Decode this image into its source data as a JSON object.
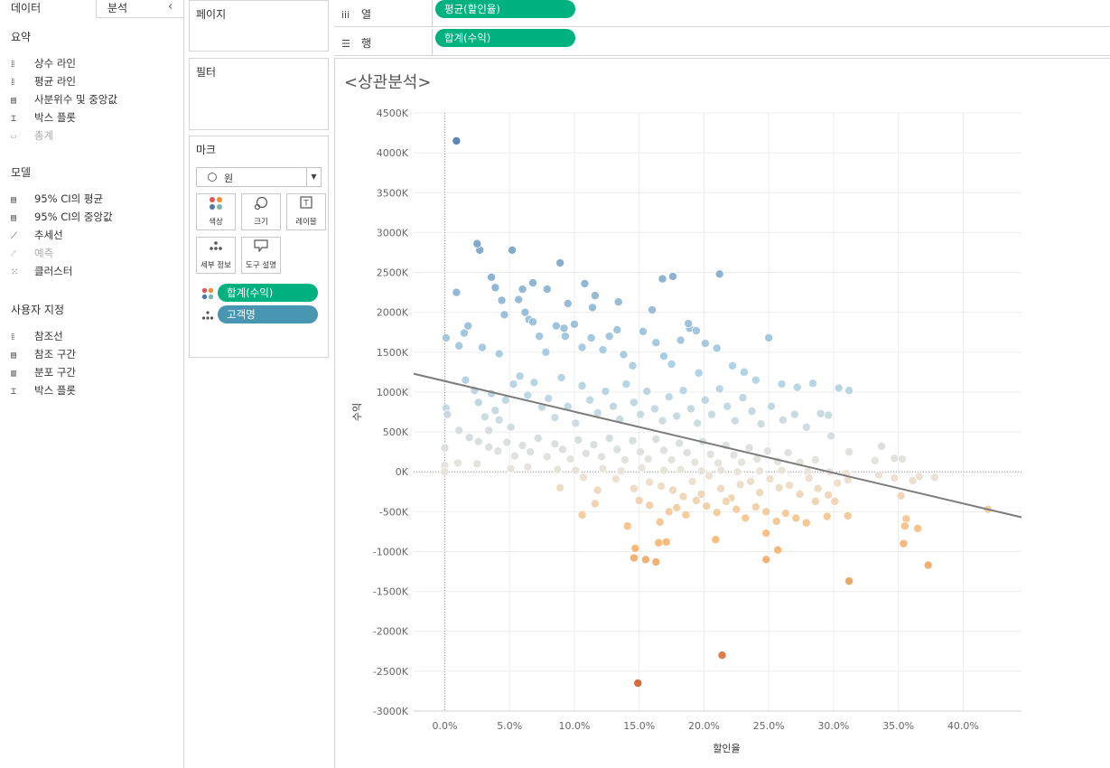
{
  "left_pane": {
    "tabs": [
      "데이터",
      "분석"
    ],
    "collapse_glyph": "‹",
    "sections": [
      {
        "title": "요약",
        "items": [
          {
            "label": "상수 라인",
            "icon": "ref-line-icon",
            "glyph": "⁞⁞",
            "disabled": false
          },
          {
            "label": "평균 라인",
            "icon": "ref-line-icon",
            "glyph": "⁞⁞",
            "disabled": false
          },
          {
            "label": "사분위수 및 중앙값",
            "icon": "band-icon",
            "glyph": "▤",
            "disabled": false
          },
          {
            "label": "박스 플롯",
            "icon": "box-plot-icon",
            "glyph": "⌶",
            "disabled": false
          },
          {
            "label": "총계",
            "icon": "totals-icon",
            "glyph": "▭",
            "disabled": true
          }
        ]
      },
      {
        "title": "모델",
        "items": [
          {
            "label": "95% CI의 평균",
            "icon": "band-icon",
            "glyph": "▤",
            "disabled": false
          },
          {
            "label": "95% CI의 중앙값",
            "icon": "band-icon",
            "glyph": "▤",
            "disabled": false
          },
          {
            "label": "추세선",
            "icon": "trend-line-icon",
            "glyph": "⟋",
            "disabled": false
          },
          {
            "label": "예측",
            "icon": "forecast-icon",
            "glyph": "⤤",
            "disabled": true
          },
          {
            "label": "클러스터",
            "icon": "cluster-icon",
            "glyph": "⁙",
            "disabled": false
          }
        ]
      },
      {
        "title": "사용자 지정",
        "items": [
          {
            "label": "참조선",
            "icon": "ref-line-icon",
            "glyph": "⁞⁞",
            "disabled": false
          },
          {
            "label": "참조 구간",
            "icon": "band-icon",
            "glyph": "▤",
            "disabled": false
          },
          {
            "label": "분포 구간",
            "icon": "band-icon",
            "glyph": "▥",
            "disabled": false
          },
          {
            "label": "박스 플롯",
            "icon": "box-plot-icon",
            "glyph": "⌶",
            "disabled": false
          }
        ]
      }
    ]
  },
  "cards": {
    "pages": {
      "title": "페이지"
    },
    "filters": {
      "title": "필터"
    },
    "marks": {
      "title": "마크",
      "mark_type": "원",
      "buttons": [
        {
          "label": "색상",
          "icon": "color-icon"
        },
        {
          "label": "크기",
          "icon": "size-icon"
        },
        {
          "label": "레이블",
          "icon": "label-icon"
        },
        {
          "label": "세부 정보",
          "icon": "detail-icon"
        },
        {
          "label": "도구 설명",
          "icon": "tooltip-icon"
        }
      ],
      "pills": [
        {
          "label": "합계(수익)",
          "color": "#00b180",
          "icon": "color-icon"
        },
        {
          "label": "고객명",
          "color": "#4996b2",
          "icon": "detail-icon"
        }
      ]
    }
  },
  "shelves": {
    "columns": {
      "label": "열",
      "pill": "평균(할인율)",
      "pill_color": "#00b180"
    },
    "rows": {
      "label": "행",
      "pill": "합계(수익)",
      "pill_color": "#00b180"
    }
  },
  "sheet": {
    "title": "<상관분석>"
  },
  "chart_data": {
    "type": "scatter",
    "xlabel": "할인율",
    "ylabel": "수익",
    "x_unit": "%",
    "x_ticks": [
      "0.0%",
      "5.0%",
      "10.0%",
      "15.0%",
      "20.0%",
      "25.0%",
      "30.0%",
      "35.0%",
      "40.0%"
    ],
    "y_ticks": [
      "4500K",
      "4000K",
      "3500K",
      "3000K",
      "2500K",
      "2000K",
      "1500K",
      "1000K",
      "500K",
      "0K",
      "-500K",
      "-1000K",
      "-1500K",
      "-2000K",
      "-2500K",
      "-3000K"
    ],
    "xlim": [
      -2.4,
      44.5
    ],
    "ylim": [
      -3000,
      4500
    ],
    "y_unit": "K",
    "grid": true,
    "zero_reference_lines": true,
    "trend_line": {
      "x": [
        -2.4,
        44.5
      ],
      "y": [
        1230,
        -570
      ]
    },
    "color_scale": {
      "type": "diverging",
      "low_color": "#d2582a",
      "mid_color": "#e8e2d8",
      "high_color": "#4a78ad",
      "low_value": -2700,
      "high_value": 4200
    },
    "points": [
      [
        0.9,
        4150
      ],
      [
        2.7,
        2780
      ],
      [
        2.5,
        2860
      ],
      [
        3.6,
        2440
      ],
      [
        5.2,
        2780
      ],
      [
        6.0,
        2290
      ],
      [
        6.8,
        2370
      ],
      [
        7.9,
        2290
      ],
      [
        9.2,
        1800
      ],
      [
        9.5,
        2110
      ],
      [
        8.9,
        2620
      ],
      [
        3.9,
        2310
      ],
      [
        10.8,
        2360
      ],
      [
        11.6,
        2210
      ],
      [
        11.4,
        2060
      ],
      [
        13.4,
        2130
      ],
      [
        16.0,
        2030
      ],
      [
        16.8,
        2420
      ],
      [
        17.6,
        2450
      ],
      [
        18.9,
        1800
      ],
      [
        19.4,
        1770
      ],
      [
        21.2,
        2480
      ],
      [
        0.1,
        1680
      ],
      [
        0.9,
        2250
      ],
      [
        1.1,
        1580
      ],
      [
        1.5,
        1740
      ],
      [
        1.8,
        1830
      ],
      [
        2.9,
        1560
      ],
      [
        4.2,
        1480
      ],
      [
        4.4,
        2150
      ],
      [
        4.6,
        1970
      ],
      [
        5.7,
        2160
      ],
      [
        6.2,
        2000
      ],
      [
        6.5,
        1910
      ],
      [
        6.8,
        1880
      ],
      [
        7.3,
        1700
      ],
      [
        7.8,
        1500
      ],
      [
        8.6,
        1830
      ],
      [
        9.3,
        1700
      ],
      [
        10.0,
        1850
      ],
      [
        10.6,
        1560
      ],
      [
        11.3,
        1680
      ],
      [
        12.2,
        1530
      ],
      [
        12.7,
        1700
      ],
      [
        13.3,
        1780
      ],
      [
        13.8,
        1470
      ],
      [
        14.5,
        1330
      ],
      [
        15.3,
        1760
      ],
      [
        16.3,
        1620
      ],
      [
        16.9,
        1450
      ],
      [
        17.5,
        1350
      ],
      [
        18.2,
        1650
      ],
      [
        18.8,
        1860
      ],
      [
        19.6,
        1240
      ],
      [
        20.1,
        1610
      ],
      [
        21.0,
        1550
      ],
      [
        22.2,
        1330
      ],
      [
        23.1,
        1250
      ],
      [
        24.0,
        1150
      ],
      [
        25.0,
        1680
      ],
      [
        26.0,
        1100
      ],
      [
        27.2,
        1060
      ],
      [
        28.4,
        1110
      ],
      [
        29.6,
        710
      ],
      [
        30.4,
        1050
      ],
      [
        31.2,
        1020
      ],
      [
        0.1,
        800
      ],
      [
        0.2,
        720
      ],
      [
        1.1,
        520
      ],
      [
        1.6,
        1150
      ],
      [
        2.3,
        1020
      ],
      [
        2.6,
        870
      ],
      [
        3.1,
        690
      ],
      [
        3.4,
        520
      ],
      [
        3.6,
        980
      ],
      [
        3.9,
        770
      ],
      [
        4.2,
        650
      ],
      [
        4.7,
        900
      ],
      [
        5.1,
        560
      ],
      [
        5.3,
        1100
      ],
      [
        5.8,
        1200
      ],
      [
        6.4,
        960
      ],
      [
        6.9,
        1120
      ],
      [
        7.5,
        810
      ],
      [
        8.0,
        920
      ],
      [
        8.5,
        680
      ],
      [
        9.0,
        1180
      ],
      [
        9.5,
        820
      ],
      [
        10.1,
        610
      ],
      [
        10.6,
        1080
      ],
      [
        11.2,
        900
      ],
      [
        11.8,
        740
      ],
      [
        12.4,
        1010
      ],
      [
        13.0,
        820
      ],
      [
        13.5,
        660
      ],
      [
        14.0,
        1100
      ],
      [
        14.6,
        870
      ],
      [
        15.1,
        720
      ],
      [
        15.6,
        1010
      ],
      [
        16.2,
        790
      ],
      [
        16.8,
        640
      ],
      [
        17.3,
        940
      ],
      [
        17.9,
        700
      ],
      [
        18.4,
        1020
      ],
      [
        19.0,
        790
      ],
      [
        19.5,
        610
      ],
      [
        20.1,
        900
      ],
      [
        20.6,
        720
      ],
      [
        21.2,
        1040
      ],
      [
        21.8,
        820
      ],
      [
        22.4,
        640
      ],
      [
        23.0,
        930
      ],
      [
        23.7,
        760
      ],
      [
        24.4,
        600
      ],
      [
        25.2,
        820
      ],
      [
        26.1,
        650
      ],
      [
        27.0,
        720
      ],
      [
        27.9,
        560
      ],
      [
        29.0,
        730
      ],
      [
        29.8,
        450
      ],
      [
        31.2,
        250
      ],
      [
        33.7,
        320
      ],
      [
        34.7,
        170
      ],
      [
        33.2,
        140
      ],
      [
        35.3,
        160
      ],
      [
        1.9,
        430
      ],
      [
        2.6,
        380
      ],
      [
        3.4,
        310
      ],
      [
        4.1,
        260
      ],
      [
        4.8,
        370
      ],
      [
        5.4,
        200
      ],
      [
        6.0,
        330
      ],
      [
        6.6,
        250
      ],
      [
        7.2,
        420
      ],
      [
        7.9,
        190
      ],
      [
        8.5,
        350
      ],
      [
        9.1,
        280
      ],
      [
        9.7,
        160
      ],
      [
        10.3,
        400
      ],
      [
        10.9,
        230
      ],
      [
        11.5,
        340
      ],
      [
        12.1,
        190
      ],
      [
        12.7,
        420
      ],
      [
        13.3,
        280
      ],
      [
        13.9,
        150
      ],
      [
        14.5,
        390
      ],
      [
        15.1,
        250
      ],
      [
        15.7,
        160
      ],
      [
        16.3,
        410
      ],
      [
        16.9,
        270
      ],
      [
        17.5,
        150
      ],
      [
        18.1,
        360
      ],
      [
        18.7,
        240
      ],
      [
        19.3,
        120
      ],
      [
        19.9,
        380
      ],
      [
        20.5,
        220
      ],
      [
        21.1,
        110
      ],
      [
        21.7,
        330
      ],
      [
        22.3,
        210
      ],
      [
        22.9,
        120
      ],
      [
        23.5,
        300
      ],
      [
        24.1,
        160
      ],
      [
        24.9,
        260
      ],
      [
        25.7,
        130
      ],
      [
        26.5,
        240
      ],
      [
        27.4,
        120
      ],
      [
        28.6,
        150
      ],
      [
        0.0,
        300
      ],
      [
        0.0,
        80
      ],
      [
        0.0,
        0
      ],
      [
        1.0,
        110
      ],
      [
        2.5,
        100
      ],
      [
        5.1,
        40
      ],
      [
        6.4,
        60
      ],
      [
        8.7,
        30
      ],
      [
        10.1,
        20
      ],
      [
        12.2,
        40
      ],
      [
        13.6,
        10
      ],
      [
        15.2,
        50
      ],
      [
        16.9,
        20
      ],
      [
        18.2,
        30
      ],
      [
        19.8,
        10
      ],
      [
        21.3,
        20
      ],
      [
        22.6,
        0
      ],
      [
        24.3,
        10
      ],
      [
        26.0,
        20
      ],
      [
        28.0,
        0
      ],
      [
        29.7,
        0
      ],
      [
        31.0,
        -20
      ],
      [
        33.5,
        -40
      ],
      [
        34.7,
        -80
      ],
      [
        36.6,
        -60
      ],
      [
        37.8,
        -70
      ],
      [
        36.1,
        -110
      ],
      [
        8.9,
        -200
      ],
      [
        10.7,
        -70
      ],
      [
        11.8,
        -230
      ],
      [
        13.2,
        -90
      ],
      [
        14.6,
        -210
      ],
      [
        15.8,
        -130
      ],
      [
        16.7,
        -180
      ],
      [
        17.6,
        -230
      ],
      [
        18.4,
        -310
      ],
      [
        19.1,
        -120
      ],
      [
        19.8,
        -280
      ],
      [
        20.4,
        -50
      ],
      [
        21.3,
        -210
      ],
      [
        22.1,
        -330
      ],
      [
        22.8,
        -160
      ],
      [
        23.6,
        -120
      ],
      [
        24.3,
        -260
      ],
      [
        25.1,
        -90
      ],
      [
        25.8,
        -200
      ],
      [
        26.6,
        -170
      ],
      [
        27.4,
        -280
      ],
      [
        28.1,
        -80
      ],
      [
        28.8,
        -210
      ],
      [
        29.6,
        -290
      ],
      [
        30.3,
        -140
      ],
      [
        31.1,
        -100
      ],
      [
        10.6,
        -540
      ],
      [
        11.6,
        -400
      ],
      [
        14.1,
        -680
      ],
      [
        15.0,
        -360
      ],
      [
        15.8,
        -420
      ],
      [
        16.6,
        -630
      ],
      [
        17.3,
        -500
      ],
      [
        17.9,
        -450
      ],
      [
        18.6,
        -540
      ],
      [
        19.4,
        -360
      ],
      [
        20.2,
        -430
      ],
      [
        21.0,
        -510
      ],
      [
        21.7,
        -370
      ],
      [
        22.5,
        -470
      ],
      [
        23.2,
        -580
      ],
      [
        24.0,
        -440
      ],
      [
        24.8,
        -500
      ],
      [
        25.6,
        -620
      ],
      [
        26.3,
        -520
      ],
      [
        27.1,
        -580
      ],
      [
        27.9,
        -640
      ],
      [
        28.6,
        -370
      ],
      [
        29.5,
        -560
      ],
      [
        30.1,
        -370
      ],
      [
        31.1,
        -550
      ],
      [
        35.2,
        -300
      ],
      [
        35.6,
        -590
      ],
      [
        35.5,
        -680
      ],
      [
        36.5,
        -710
      ],
      [
        14.7,
        -960
      ],
      [
        14.6,
        -1080
      ],
      [
        15.5,
        -1100
      ],
      [
        16.3,
        -1130
      ],
      [
        16.5,
        -890
      ],
      [
        17.1,
        -880
      ],
      [
        20.9,
        -850
      ],
      [
        24.8,
        -770
      ],
      [
        25.7,
        -980
      ],
      [
        24.8,
        -1100
      ],
      [
        31.2,
        -1370
      ],
      [
        35.4,
        -900
      ],
      [
        37.3,
        -1170
      ],
      [
        41.9,
        -470
      ],
      [
        21.4,
        -2300
      ],
      [
        14.9,
        -2650
      ]
    ]
  }
}
